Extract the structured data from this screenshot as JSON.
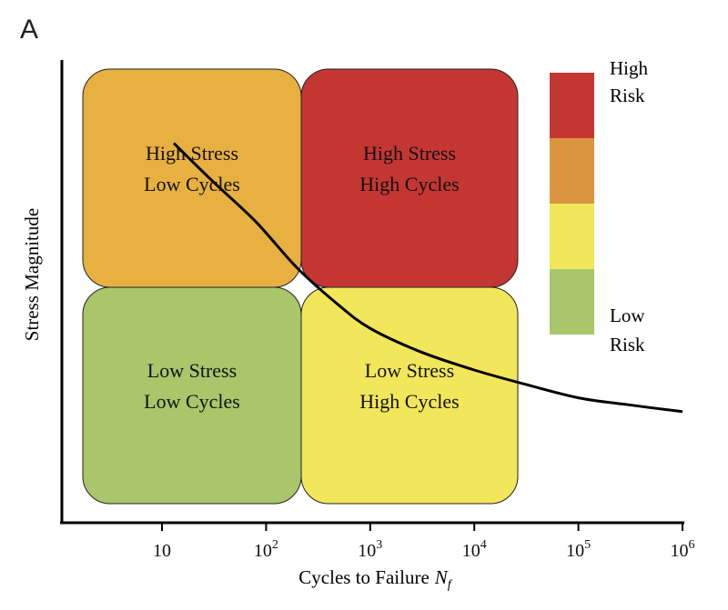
{
  "panel_label": "A",
  "chart_data": {
    "type": "heatmap",
    "title": "",
    "xlabel": "Cycles to Failure",
    "xlabel_var": "N",
    "xlabel_sub": "f",
    "ylabel": "Stress Magnitude",
    "x_scale": "log",
    "xlim": [
      1,
      1000000
    ],
    "x_ticks": [
      {
        "base": "10",
        "exp": ""
      },
      {
        "base": "10",
        "exp": "2"
      },
      {
        "base": "10",
        "exp": "3"
      },
      {
        "base": "10",
        "exp": "4"
      },
      {
        "base": "10",
        "exp": "5"
      },
      {
        "base": "10",
        "exp": "6"
      }
    ],
    "quadrants": [
      {
        "line1": "High Stress",
        "line2": "Low Cycles",
        "color": "#e8b040"
      },
      {
        "line1": "High Stress",
        "line2": "High Cycles",
        "color": "#c43632"
      },
      {
        "line1": "Low Stress",
        "line2": "Low Cycles",
        "color": "#a9c66b"
      },
      {
        "line1": "Low Stress",
        "line2": "High Cycles",
        "color": "#f2e65a"
      }
    ],
    "curve": {
      "x": [
        13,
        30,
        80,
        200,
        500,
        1000,
        3000,
        10000,
        30000,
        100000,
        300000,
        1000000
      ],
      "y": [
        0.82,
        0.74,
        0.65,
        0.55,
        0.47,
        0.42,
        0.37,
        0.33,
        0.3,
        0.27,
        0.255,
        0.24
      ]
    },
    "legend": {
      "placement": "top-right",
      "top_label_1": "High",
      "top_label_2": "Risk",
      "bottom_label_1": "Low",
      "bottom_label_2": "Risk",
      "colors": [
        "#c43632",
        "#db9540",
        "#f2e65a",
        "#a9c66b"
      ]
    }
  }
}
